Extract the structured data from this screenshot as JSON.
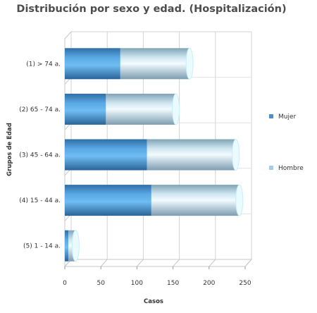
{
  "chart_data": {
    "type": "bar",
    "orientation": "horizontal",
    "stacked": true,
    "style": "3d-cylinder",
    "title": "Distribución por sexo y edad. (Hospitalización)",
    "xlabel": "Casos",
    "ylabel": "Grupos de Edad",
    "xlim": [
      0,
      250
    ],
    "xticks": [
      "0",
      "50",
      "100",
      "150",
      "200",
      "250"
    ],
    "grid": true,
    "legend_position": "right",
    "categories": [
      "(1) > 74 a.",
      "(2) 65 - 74 a.",
      "(3) 45 - 64 a.",
      "(4) 15 - 44 a.",
      "(5) 1 - 14 a."
    ],
    "series": [
      {
        "name": "Mujer",
        "color": "#4f8fc8",
        "values": [
          77,
          57,
          114,
          120,
          5
        ]
      },
      {
        "name": "Hombre",
        "color": "#9fcfe8",
        "values": [
          96,
          97,
          123,
          122,
          10
        ]
      }
    ]
  }
}
